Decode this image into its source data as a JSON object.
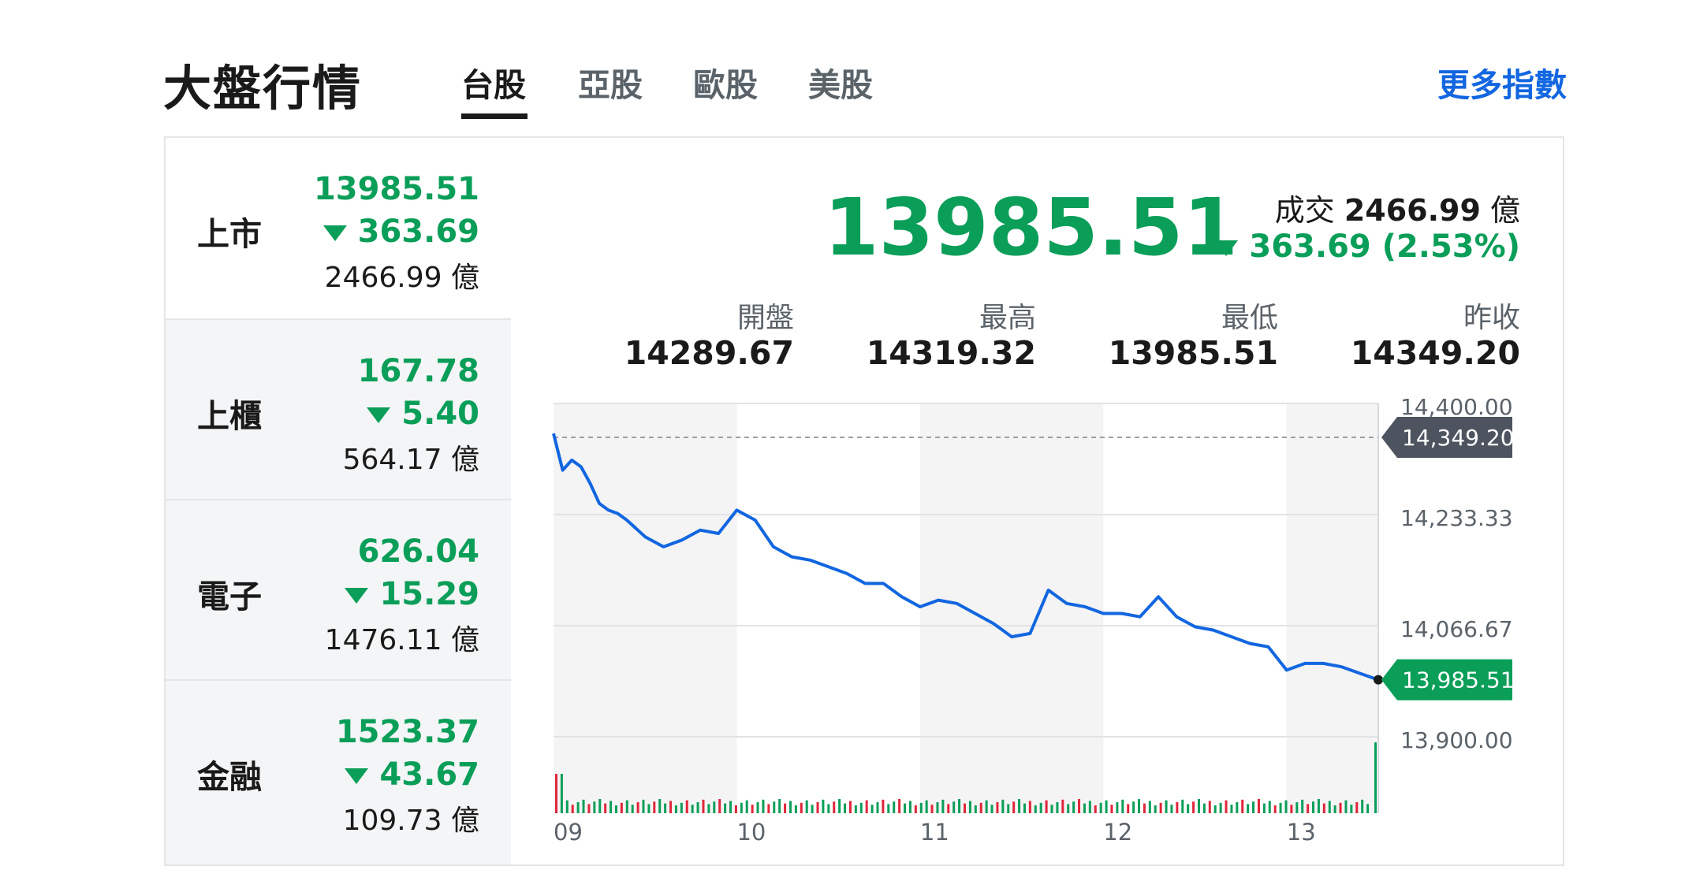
{
  "header": {
    "title": "大盤行情",
    "tabs": [
      "台股",
      "亞股",
      "歐股",
      "美股"
    ],
    "active_tab": "台股",
    "more_link": "更多指數"
  },
  "sidebar": {
    "items": [
      {
        "name": "上市",
        "value": "13985.51",
        "change": "363.69",
        "volume": "2466.99 億"
      },
      {
        "name": "上櫃",
        "value": "167.78",
        "change": "5.40",
        "volume": "564.17 億"
      },
      {
        "name": "電子",
        "value": "626.04",
        "change": "15.29",
        "volume": "1476.11 億"
      },
      {
        "name": "金融",
        "value": "1523.37",
        "change": "43.67",
        "volume": "109.73 億"
      }
    ]
  },
  "main": {
    "price": "13985.51",
    "volume_label": "成交",
    "volume_value": "2466.99",
    "volume_unit": "億",
    "change": "363.69 (2.53%)",
    "stats": [
      {
        "label": "開盤",
        "value": "14289.67"
      },
      {
        "label": "最高",
        "value": "14319.32"
      },
      {
        "label": "最低",
        "value": "13985.51"
      },
      {
        "label": "昨收",
        "value": "14349.20"
      }
    ]
  },
  "colors": {
    "down": "#0a9e59",
    "line": "#1266e0",
    "up": "#e0263a",
    "accent": "#1266e0"
  },
  "chart_data": {
    "type": "line",
    "x_ticks": [
      "09",
      "10",
      "11",
      "12",
      "13"
    ],
    "y_ticks": [
      "14,400.00",
      "14,233.33",
      "14,066.67",
      "13,900.00"
    ],
    "ylim": [
      13900,
      14400
    ],
    "ref_label": "14,349.20",
    "ref_value": 14349.2,
    "last_label": "13,985.51",
    "last_value": 13985.51,
    "x": [
      9.0,
      9.05,
      9.1,
      9.15,
      9.2,
      9.25,
      9.3,
      9.35,
      9.4,
      9.5,
      9.6,
      9.7,
      9.8,
      9.9,
      10.0,
      10.1,
      10.2,
      10.3,
      10.4,
      10.5,
      10.6,
      10.7,
      10.8,
      10.9,
      11.0,
      11.1,
      11.2,
      11.3,
      11.4,
      11.5,
      11.6,
      11.7,
      11.8,
      11.9,
      12.0,
      12.1,
      12.2,
      12.3,
      12.4,
      12.5,
      12.6,
      12.7,
      12.8,
      12.9,
      13.0,
      13.1,
      13.2,
      13.3,
      13.5
    ],
    "y": [
      14355,
      14300,
      14315,
      14305,
      14280,
      14250,
      14240,
      14235,
      14225,
      14200,
      14185,
      14195,
      14210,
      14205,
      14240,
      14225,
      14185,
      14170,
      14165,
      14155,
      14145,
      14130,
      14130,
      14110,
      14095,
      14105,
      14100,
      14085,
      14070,
      14050,
      14055,
      14120,
      14100,
      14095,
      14085,
      14085,
      14080,
      14110,
      14080,
      14065,
      14060,
      14050,
      14040,
      14035,
      14000,
      14010,
      14010,
      14005,
      13985.51
    ]
  }
}
